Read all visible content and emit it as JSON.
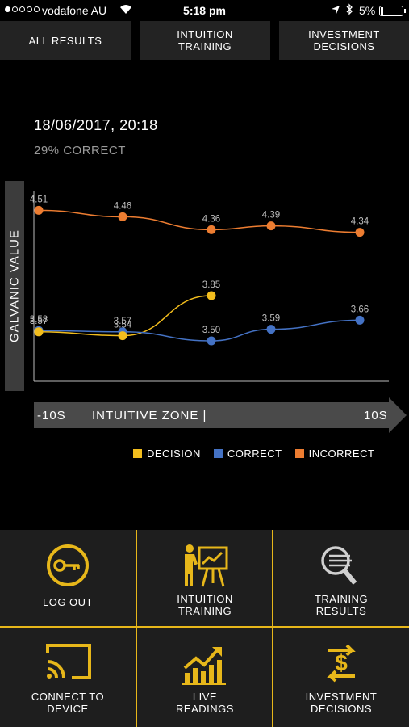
{
  "status_bar": {
    "carrier": "vodafone AU",
    "time": "5:18 pm",
    "battery": "5%"
  },
  "tabs": [
    {
      "label": "ALL RESULTS"
    },
    {
      "label": "INTUITION\nTRAINING"
    },
    {
      "label": "INVESTMENT\nDECISIONS"
    }
  ],
  "session": {
    "date": "18/06/2017, 20:18",
    "correct_pct": "29% CORRECT"
  },
  "colors": {
    "decision": "#f2bd1d",
    "correct": "#4472c4",
    "incorrect": "#ed7d31",
    "accent": "#e7b71a"
  },
  "chart_data": {
    "type": "line",
    "ylabel": "GALVANIC VALUE",
    "ylim": [
      3.25,
      4.6
    ],
    "series": [
      {
        "name": "DECISION",
        "color": "#f2bd1d",
        "points": [
          [
            0,
            3.57
          ],
          [
            1,
            3.54
          ],
          [
            2,
            3.85
          ]
        ],
        "labels": [
          "3.57",
          "3.54",
          "3.85"
        ]
      },
      {
        "name": "CORRECT",
        "color": "#4472c4",
        "points": [
          [
            0,
            3.58
          ],
          [
            1,
            3.57
          ],
          [
            2,
            3.5
          ],
          [
            3,
            3.59
          ],
          [
            4,
            3.66
          ]
        ],
        "labels": [
          "3.58",
          "3.57",
          "3.50",
          "3.59",
          "3.66"
        ]
      },
      {
        "name": "INCORRECT",
        "color": "#ed7d31",
        "points": [
          [
            0,
            4.51
          ],
          [
            1,
            4.46
          ],
          [
            2,
            4.36
          ],
          [
            3,
            4.39
          ],
          [
            4,
            4.34
          ]
        ],
        "labels": [
          "4.51",
          "4.46",
          "4.36",
          "4.39",
          "4.34"
        ]
      }
    ]
  },
  "zone_bar": {
    "left": "-10S",
    "middle": "INTUITIVE ZONE  |",
    "right": "10S"
  },
  "legend": [
    {
      "label": "DECISION",
      "color": "#f2bd1d"
    },
    {
      "label": "CORRECT",
      "color": "#4472c4"
    },
    {
      "label": "INCORRECT",
      "color": "#ed7d31"
    }
  ],
  "menu": [
    {
      "label": "LOG OUT",
      "icon": "key-icon"
    },
    {
      "label": "INTUITION\nTRAINING",
      "icon": "presentation-icon"
    },
    {
      "label": "TRAINING\nRESULTS",
      "icon": "search-list-icon"
    },
    {
      "label": "CONNECT TO\nDEVICE",
      "icon": "cast-icon"
    },
    {
      "label": "LIVE\nREADINGS",
      "icon": "chart-up-icon"
    },
    {
      "label": "INVESTMENT\nDECISIONS",
      "icon": "dollar-exchange-icon"
    }
  ]
}
